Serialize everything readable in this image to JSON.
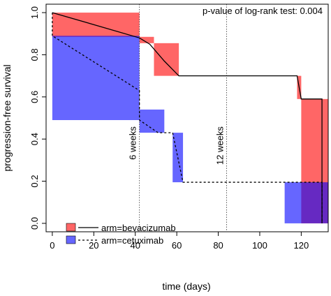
{
  "chart_data": {
    "type": "line",
    "title": "",
    "xlabel": "time (days)",
    "ylabel": "progression-free survival",
    "xlim": [
      -3,
      133
    ],
    "ylim": [
      -0.04,
      1.04
    ],
    "x_ticks": [
      0,
      20,
      40,
      60,
      80,
      100,
      120
    ],
    "y_ticks": [
      0.0,
      0.2,
      0.4,
      0.6,
      0.8,
      1.0
    ],
    "x_tick_labels": [
      "0",
      "20",
      "40",
      "60",
      "80",
      "100",
      "120"
    ],
    "y_tick_labels": [
      "0.0",
      "0.2",
      "0.4",
      "0.6",
      "0.8",
      "1.0"
    ],
    "annotation": "p-value of log-rank test: 0.004",
    "grid": false,
    "legend_position": "bottom-left",
    "reference_lines": [
      {
        "x": 42,
        "label": "6 weeks"
      },
      {
        "x": 84,
        "label": "12 weeks"
      }
    ],
    "series": [
      {
        "name": "arm=bevacizumab",
        "color": "#ff0000",
        "line_style": "solid",
        "points": [
          [
            0,
            1.0
          ],
          [
            42,
            0.88
          ],
          [
            47,
            0.85
          ],
          [
            54,
            0.77
          ],
          [
            61,
            0.7
          ],
          [
            118,
            0.7
          ],
          [
            120,
            0.59
          ],
          [
            130,
            0.59
          ],
          [
            130,
            0.0
          ]
        ],
        "intervals": [
          {
            "x0": 0,
            "x1": 42,
            "y0": 0.885,
            "y1": 1.0
          },
          {
            "x0": 42,
            "x1": 49,
            "y0": 0.855,
            "y1": 0.885
          },
          {
            "x0": 49,
            "x1": 61,
            "y0": 0.7,
            "y1": 0.855
          },
          {
            "x0": 118,
            "x1": 120,
            "y0": 0.59,
            "y1": 0.7
          },
          {
            "x0": 120,
            "x1": 133,
            "y0": 0.0,
            "y1": 0.59
          }
        ]
      },
      {
        "name": "arm=cetuximab",
        "color": "#0000ff",
        "line_style": "dashed",
        "points": [
          [
            0,
            1.0
          ],
          [
            0,
            0.89
          ],
          [
            42,
            0.63
          ],
          [
            42,
            0.49
          ],
          [
            51,
            0.43
          ],
          [
            58,
            0.43
          ],
          [
            63,
            0.195
          ],
          [
            130,
            0.195
          ],
          [
            130,
            0.0
          ]
        ],
        "intervals": [
          {
            "x0": 0,
            "x1": 42,
            "y0": 0.49,
            "y1": 0.89
          },
          {
            "x0": 42,
            "x1": 54,
            "y0": 0.43,
            "y1": 0.54
          },
          {
            "x0": 58,
            "x1": 63,
            "y0": 0.195,
            "y1": 0.43
          },
          {
            "x0": 112,
            "x1": 133,
            "y0": 0.0,
            "y1": 0.195
          }
        ]
      }
    ]
  }
}
